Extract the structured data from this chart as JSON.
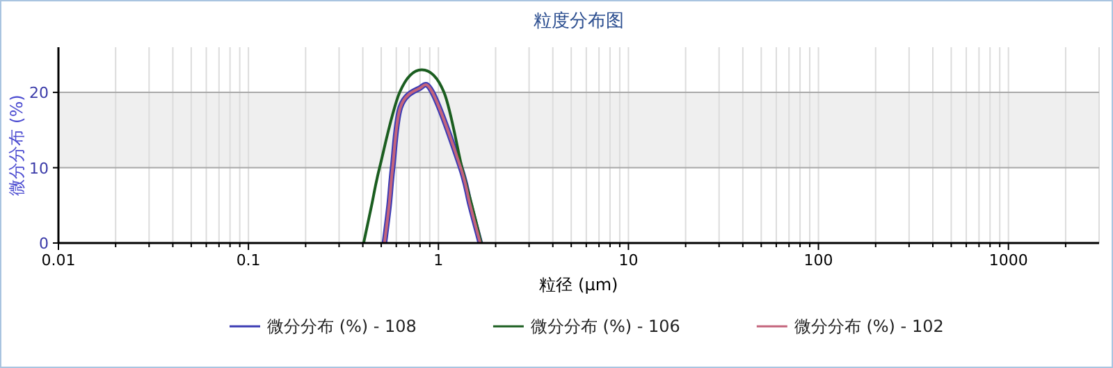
{
  "chart_data": {
    "type": "line",
    "title": "粒度分布图",
    "xlabel": "粒径 (μm)",
    "ylabel": "微分分布 (%)",
    "log": "x",
    "xlim": [
      0.01,
      3000
    ],
    "xticks": [
      0.01,
      0.1,
      1,
      10,
      100,
      1000
    ],
    "ylim": [
      0,
      26
    ],
    "yticks": [
      0,
      10,
      20
    ],
    "grid": true,
    "legend": "bottom",
    "line_style": "solid",
    "bands": [
      {
        "axis": "y",
        "from": 10,
        "to": 20,
        "color": "#efefef"
      }
    ],
    "series": [
      {
        "name": "微分分布 (%) - 108",
        "color": "#3c3cb4",
        "x": [
          0.52,
          0.55,
          0.574,
          0.63,
          0.79,
          0.93,
          1.31,
          1.47,
          1.66
        ],
        "values": [
          0,
          5,
          10,
          18,
          20.5,
          20,
          10,
          5,
          0
        ]
      },
      {
        "name": "微分分布 (%) - 106",
        "color": "#1b5e20",
        "x": [
          0.404,
          0.445,
          0.49,
          0.625,
          0.817,
          1.07,
          1.33,
          1.5,
          1.68
        ],
        "values": [
          0,
          5,
          10,
          20,
          23,
          20,
          10,
          5,
          0
        ]
      },
      {
        "name": "微分分布 (%) - 102",
        "color": "#c4647c",
        "x": [
          0.52,
          0.55,
          0.574,
          0.63,
          0.79,
          0.93,
          1.31,
          1.47,
          1.66
        ],
        "values": [
          0,
          5,
          10,
          18,
          20.5,
          20,
          10,
          5,
          0
        ]
      }
    ]
  }
}
